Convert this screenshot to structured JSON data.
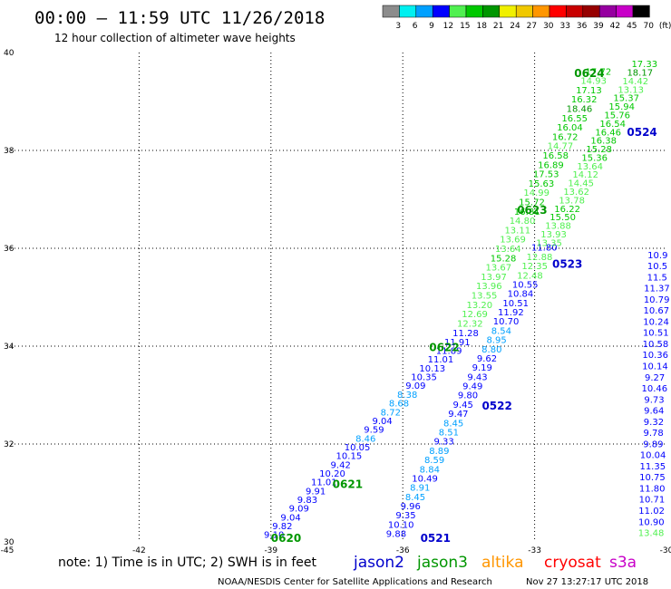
{
  "header": {
    "title": "00:00 – 11:59 UTC 11/26/2018",
    "subtitle": "12 hour collection of altimeter wave heights"
  },
  "scale": {
    "labels": [
      "3",
      "6",
      "9",
      "12",
      "15",
      "18",
      "21",
      "24",
      "27",
      "30",
      "33",
      "36",
      "39",
      "42",
      "45",
      "70",
      "(ft)"
    ],
    "colors": [
      "#8c8c8c",
      "#00f0f0",
      "#00a0ff",
      "#0000ff",
      "#50f050",
      "#00c800",
      "#009600",
      "#f0f000",
      "#f0c800",
      "#ff9600",
      "#ff0000",
      "#c80000",
      "#960000",
      "#9600a0",
      "#c800c8",
      "#000000"
    ]
  },
  "note": {
    "text": "note:  1) Time is in UTC;  2) SWH is in feet",
    "satellites": [
      {
        "name": "jason2",
        "color": "#0000cc"
      },
      {
        "name": "jason3",
        "color": "#009600"
      },
      {
        "name": "altika",
        "color": "#ff9600"
      },
      {
        "name": "cryosat",
        "color": "#ff0000"
      },
      {
        "name": "s3a",
        "color": "#c800c8"
      }
    ]
  },
  "footer": {
    "center": "NOAA/NESDIS Center for Satellite Applications and Research",
    "right": "Nov 27 13:27:17 UTC 2018"
  },
  "chart_data": {
    "type": "scatter",
    "title": "00:00 – 11:59 UTC 11/26/2018",
    "subtitle": "12 hour collection of altimeter wave heights",
    "xlabel": "",
    "ylabel": "",
    "xlim": [
      -45,
      -30
    ],
    "ylim": [
      30,
      40
    ],
    "x_ticks": [
      "-45",
      "-42",
      "-39",
      "-36",
      "-33",
      "-30"
    ],
    "y_ticks": [
      "30",
      "32",
      "34",
      "36",
      "38",
      "40"
    ],
    "grid": true,
    "color_key": {
      "thresholds": [
        3,
        6,
        9,
        12,
        15,
        18,
        21,
        24,
        27,
        30,
        33,
        36,
        39,
        42,
        45,
        70
      ],
      "colors": [
        "#8c8c8c",
        "#00f0f0",
        "#00a0ff",
        "#0000ff",
        "#50f050",
        "#00c800",
        "#009600",
        "#f0f000",
        "#f0c800",
        "#ff9600",
        "#ff0000",
        "#c80000",
        "#960000",
        "#9600a0",
        "#c800c8",
        "#000000"
      ]
    },
    "tracks": [
      {
        "satellite": "jason2",
        "color": "#0000cc",
        "start": [
          -38.93,
          30.08
        ],
        "end": [
          -34.57,
          34.2
        ],
        "values": [
          "9.10",
          "9.82",
          "9.04",
          "9.09",
          "9.83",
          "9.91",
          "11.01",
          "10.20",
          "9.42",
          "10.15",
          "10.05",
          "8.46",
          "9.59",
          "9.04",
          "8.72",
          "8.68",
          "8.38",
          "9.09",
          "10.35",
          "10.13",
          "11.01",
          "11.89",
          "11.91",
          "11.28"
        ]
      },
      {
        "satellite": "jason3",
        "color": "#009600",
        "start": [
          -34.47,
          34.4
        ],
        "end": [
          -31.55,
          39.55
        ],
        "values": [
          "12.32",
          "12.69",
          "13.20",
          "13.55",
          "13.96",
          "13.97",
          "13.67",
          "15.28",
          "13.64",
          "13.69",
          "13.11",
          "14.80",
          "16.81",
          "15.72",
          "14.99",
          "15.63",
          "17.53",
          "16.89",
          "16.58",
          "14.77",
          "16.72",
          "16.04",
          "16.55",
          "18.46",
          "16.32",
          "17.13",
          "14.93",
          "17.72"
        ]
      },
      {
        "satellite": "jason2",
        "color": "#0000cc",
        "start": [
          -36.15,
          30.1
        ],
        "end": [
          -32.78,
          35.95
        ],
        "values": [
          "9.88",
          "10.10",
          "9.35",
          "9.96",
          "8.45",
          "8.91",
          "10.49",
          "8.84",
          "8.59",
          "8.89",
          "9.33",
          "8.51",
          "8.45",
          "9.47",
          "9.45",
          "9.80",
          "9.49",
          "9.43",
          "9.19",
          "9.62",
          "8.80",
          "8.95",
          "8.54",
          "10.70",
          "11.92",
          "10.51",
          "10.84",
          "10.55",
          "12.48",
          "12.35",
          "12.88",
          "11.80"
        ]
      },
      {
        "satellite": "jason3",
        "color": "#009600",
        "start": [
          -32.67,
          36.05
        ],
        "end": [
          -30.5,
          39.7
        ],
        "values": [
          "13.35",
          "13.93",
          "13.88",
          "15.50",
          "16.22",
          "13.78",
          "13.62",
          "14.45",
          "14.12",
          "13.64",
          "15.36",
          "15.28",
          "16.38",
          "16.46",
          "16.54",
          "15.76",
          "15.94",
          "15.37",
          "13.13",
          "14.42",
          "18.17",
          "17.33"
        ]
      },
      {
        "satellite": "jason2",
        "color": "#0000cc",
        "start": [
          -30.35,
          30.12
        ],
        "end": [
          -30.2,
          35.8
        ],
        "values": [
          "13.48",
          "10.90",
          "11.02",
          "10.71",
          "11.80",
          "10.75",
          "11.35",
          "10.04",
          "9.89",
          "9.78",
          "9.32",
          "9.64",
          "9.73",
          "10.46",
          "9.27",
          "10.14",
          "10.36",
          "10.58",
          "10.51",
          "10.24",
          "10.67",
          "10.79",
          "11.37",
          "11.5",
          "10.5",
          "10.9"
        ]
      }
    ],
    "pass_labels": [
      {
        "text": "0620",
        "lon": -39.0,
        "lat": 30.0,
        "color": "#009600"
      },
      {
        "text": "0621",
        "lon": -37.6,
        "lat": 31.1,
        "color": "#009600"
      },
      {
        "text": "0622",
        "lon": -35.4,
        "lat": 33.9,
        "color": "#009600"
      },
      {
        "text": "0623",
        "lon": -33.4,
        "lat": 36.7,
        "color": "#009600"
      },
      {
        "text": "0624",
        "lon": -32.1,
        "lat": 39.5,
        "color": "#009600"
      },
      {
        "text": "0521",
        "lon": -35.6,
        "lat": 30.0,
        "color": "#0000cc"
      },
      {
        "text": "0522",
        "lon": -34.2,
        "lat": 32.7,
        "color": "#0000cc"
      },
      {
        "text": "0523",
        "lon": -32.6,
        "lat": 35.6,
        "color": "#0000cc"
      },
      {
        "text": "0524",
        "lon": -30.9,
        "lat": 38.3,
        "color": "#0000cc"
      }
    ]
  }
}
